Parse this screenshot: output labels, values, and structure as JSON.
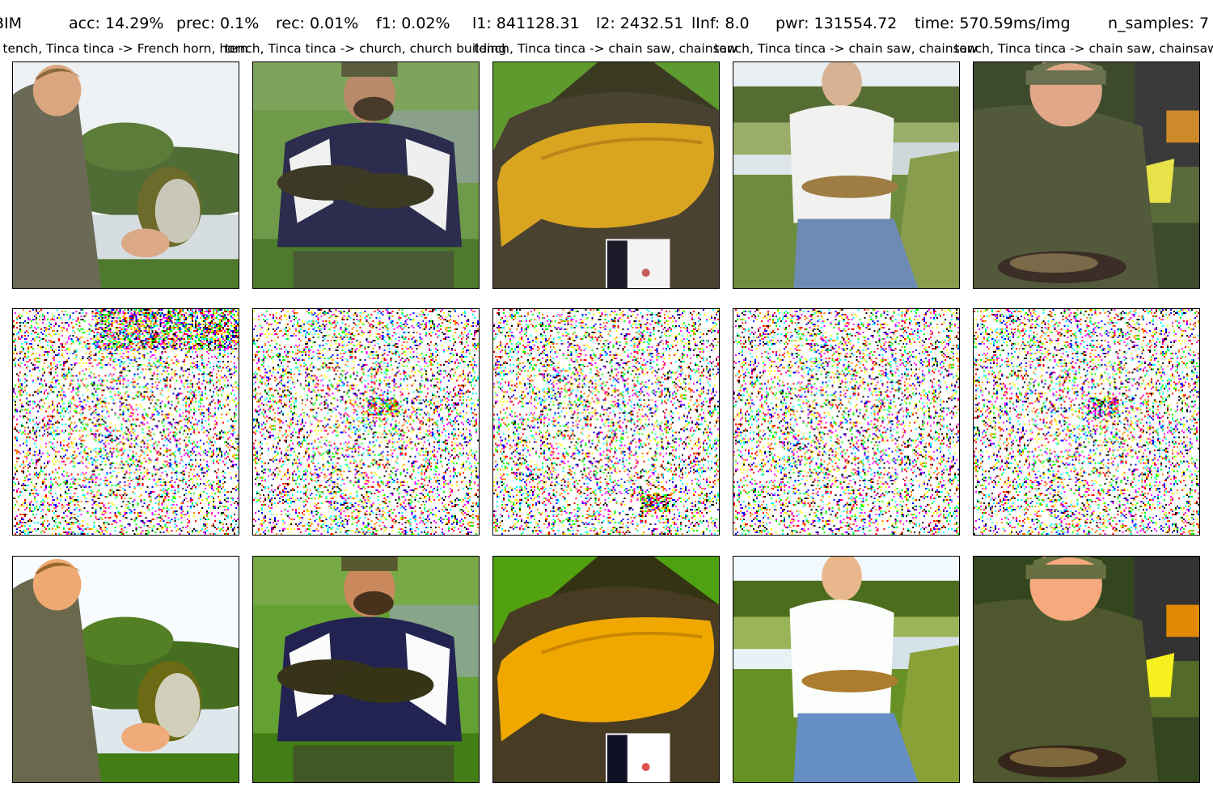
{
  "stats": {
    "method": "BIM",
    "acc": "acc: 14.29%",
    "prec": "prec: 0.1%",
    "rec": "rec: 0.01%",
    "f1": "f1: 0.02%",
    "l1": "l1: 841128.31",
    "l2": "l2: 2432.51",
    "linf": "lInf: 8.0",
    "pwr": "pwr: 131554.72",
    "time": "time: 570.59ms/img",
    "n_samples": "n_samples: 7"
  },
  "columns": [
    {
      "title": "tench, Tinca tinca -> French horn, horn",
      "scene": "man-holding-fish-lake",
      "noise_accent": "top"
    },
    {
      "title": "tench, Tinca tinca -> church, church building",
      "scene": "man-crouching-two-fish",
      "noise_accent": "center"
    },
    {
      "title": "tench, Tinca tinca -> chain saw, chainsaw",
      "scene": "yellow-fish-closeup",
      "noise_accent": "bottom"
    },
    {
      "title": "tench, Tinca tinca -> chain saw, chainsaw",
      "scene": "man-kneeling-grass-fish",
      "noise_accent": "none"
    },
    {
      "title": "tench, Tinca tinca -> chain saw, chainsaw",
      "scene": "man-cap-crouching-fish",
      "noise_accent": "center"
    }
  ],
  "rows": [
    "original",
    "perturbation",
    "adversarial"
  ],
  "colors": {
    "grass": "#5f8a3a",
    "water": "#cfd8de",
    "skin": "#e2b28c",
    "fish_yellow": "#d9a520",
    "noise": [
      "#ff00ff",
      "#00ffff",
      "#ffff00",
      "#ff0000",
      "#0000ff",
      "#00ff00",
      "#000000",
      "#ff8800"
    ]
  }
}
